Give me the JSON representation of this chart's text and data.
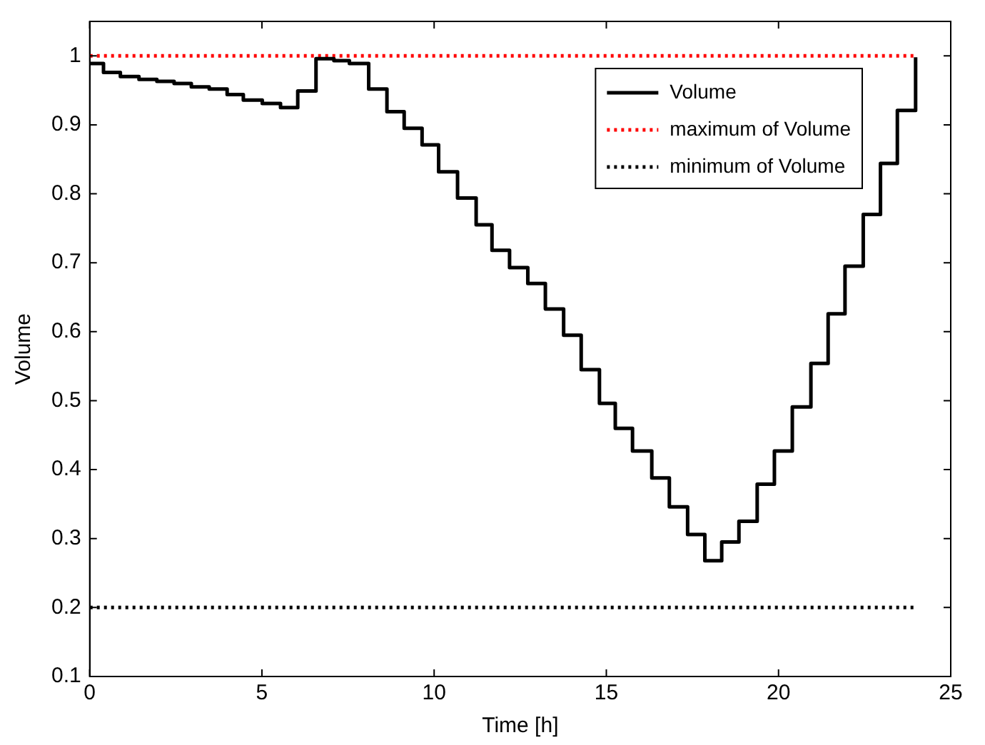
{
  "chart_data": {
    "type": "step",
    "xlabel": "Time [h]",
    "ylabel": "Volume",
    "xlim": [
      0,
      25
    ],
    "xticks": [
      0,
      5,
      10,
      15,
      20,
      25
    ],
    "ylim": [
      0.1,
      1.05
    ],
    "yticks": [
      0.1,
      0.2,
      0.3,
      0.4,
      0.5,
      0.6,
      0.7,
      0.8,
      0.9,
      1
    ],
    "grid": false,
    "legend": "top right",
    "marker": "none",
    "series": [
      {
        "name": "Volume",
        "color": "#000000",
        "type": "step",
        "line_style": "solid",
        "x": [
          0,
          0.4,
          0.89,
          1.43,
          1.95,
          2.45,
          2.95,
          3.47,
          3.99,
          4.46,
          5.01,
          5.54,
          6.04,
          6.57,
          7.09,
          7.54,
          8.1,
          8.63,
          9.13,
          9.65,
          10.13,
          10.68,
          11.22,
          11.68,
          12.19,
          12.72,
          13.23,
          13.76,
          14.27,
          14.8,
          15.26,
          15.76,
          16.32,
          16.83,
          17.36,
          17.86,
          18.35,
          18.85,
          19.38,
          19.88,
          20.4,
          20.94,
          21.44,
          21.93,
          22.46,
          22.96,
          23.45,
          23.98
        ],
        "values": [
          0.989,
          0.976,
          0.97,
          0.966,
          0.963,
          0.96,
          0.955,
          0.952,
          0.944,
          0.936,
          0.931,
          0.925,
          0.949,
          0.996,
          0.993,
          0.989,
          0.952,
          0.919,
          0.895,
          0.871,
          0.832,
          0.794,
          0.755,
          0.718,
          0.693,
          0.67,
          0.633,
          0.595,
          0.545,
          0.496,
          0.46,
          0.427,
          0.388,
          0.346,
          0.306,
          0.268,
          0.295,
          0.325,
          0.379,
          0.427,
          0.491,
          0.554,
          0.626,
          0.695,
          0.77,
          0.844,
          0.921,
          0.998
        ]
      },
      {
        "name": "maximum of Volume",
        "color": "#ff0000",
        "type": "line",
        "line_style": "dotted",
        "x": [
          0,
          24
        ],
        "values": [
          1,
          1
        ]
      },
      {
        "name": "minimum of Volume",
        "color": "#000000",
        "type": "line",
        "line_style": "dotted",
        "x": [
          0,
          24
        ],
        "values": [
          0.2,
          0.2
        ]
      }
    ]
  }
}
